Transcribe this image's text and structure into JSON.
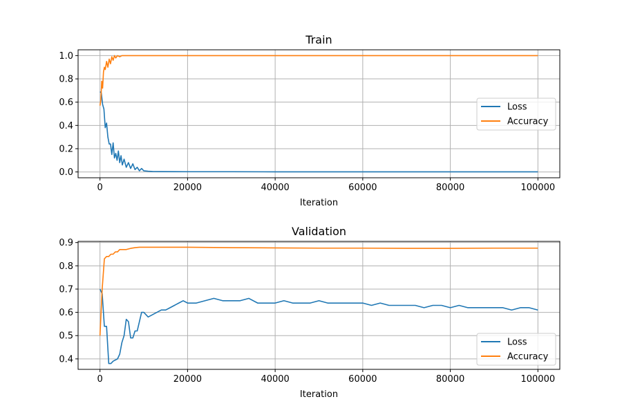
{
  "colors": {
    "loss": "#1f77b4",
    "accuracy": "#ff7f0e",
    "grid": "#b0b0b0",
    "axes": "#000000"
  },
  "chart_data": [
    {
      "type": "line",
      "title": "Train",
      "xlabel": "Iteration",
      "ylabel": "",
      "xlim": [
        -5000,
        105000
      ],
      "ylim": [
        -0.05,
        1.05
      ],
      "x_ticks": [
        0,
        20000,
        40000,
        60000,
        80000,
        100000
      ],
      "x_tick_labels": [
        "0",
        "20000",
        "40000",
        "60000",
        "80000",
        "100000"
      ],
      "y_ticks": [
        0.0,
        0.2,
        0.4,
        0.6,
        0.8,
        1.0
      ],
      "y_tick_labels": [
        "0.0",
        "0.2",
        "0.4",
        "0.6",
        "0.8",
        "1.0"
      ],
      "grid": true,
      "legend_position": "center-right",
      "series": [
        {
          "name": "Loss",
          "color": "#1f77b4",
          "x": [
            0,
            300,
            600,
            900,
            1200,
            1500,
            1800,
            2100,
            2400,
            2700,
            3000,
            3300,
            3600,
            3900,
            4200,
            4500,
            4800,
            5100,
            5500,
            6000,
            6500,
            7000,
            7500,
            8000,
            8500,
            9000,
            9500,
            10000,
            11000,
            12000,
            14000,
            20000,
            30000,
            40000,
            50000,
            60000,
            70000,
            80000,
            90000,
            100000
          ],
          "y": [
            0.69,
            0.68,
            0.58,
            0.54,
            0.38,
            0.42,
            0.3,
            0.24,
            0.24,
            0.15,
            0.25,
            0.12,
            0.16,
            0.1,
            0.18,
            0.08,
            0.14,
            0.06,
            0.11,
            0.04,
            0.08,
            0.03,
            0.07,
            0.02,
            0.04,
            0.01,
            0.03,
            0.01,
            0.006,
            0.004,
            0.003,
            0.002,
            0.002,
            0.001,
            0.001,
            0.001,
            0.001,
            0.001,
            0.001,
            0.001
          ]
        },
        {
          "name": "Accuracy",
          "color": "#ff7f0e",
          "x": [
            0,
            200,
            400,
            600,
            800,
            1000,
            1200,
            1500,
            1800,
            2100,
            2400,
            2700,
            3000,
            3300,
            3600,
            4000,
            4500,
            5000,
            6000,
            10000,
            20000,
            40000,
            60000,
            80000,
            100000
          ],
          "y": [
            0.57,
            0.62,
            0.78,
            0.72,
            0.86,
            0.9,
            0.88,
            0.95,
            0.9,
            0.97,
            0.93,
            0.99,
            0.96,
            1.0,
            0.98,
            1.0,
            0.99,
            1.0,
            1.0,
            1.0,
            1.0,
            1.0,
            1.0,
            1.0,
            1.0
          ]
        }
      ]
    },
    {
      "type": "line",
      "title": "Validation",
      "xlabel": "Iteration",
      "ylabel": "",
      "xlim": [
        -5000,
        105000
      ],
      "ylim": [
        0.355,
        0.905
      ],
      "x_ticks": [
        0,
        20000,
        40000,
        60000,
        80000,
        100000
      ],
      "x_tick_labels": [
        "0",
        "20000",
        "40000",
        "60000",
        "80000",
        "100000"
      ],
      "y_ticks": [
        0.4,
        0.5,
        0.6,
        0.7,
        0.8,
        0.9
      ],
      "y_tick_labels": [
        "0.4",
        "0.5",
        "0.6",
        "0.7",
        "0.8",
        "0.9"
      ],
      "grid": true,
      "legend_position": "lower-right",
      "series": [
        {
          "name": "Loss",
          "color": "#1f77b4",
          "x": [
            0,
            500,
            1000,
            1500,
            2000,
            2500,
            3000,
            4000,
            4500,
            5000,
            5500,
            6000,
            6500,
            7000,
            7500,
            8000,
            8500,
            9000,
            9500,
            10000,
            11000,
            12000,
            13000,
            14000,
            15000,
            16000,
            17000,
            18000,
            19000,
            20000,
            22000,
            24000,
            26000,
            28000,
            30000,
            32000,
            34000,
            36000,
            38000,
            40000,
            42000,
            44000,
            46000,
            48000,
            50000,
            52000,
            54000,
            56000,
            58000,
            60000,
            62000,
            64000,
            66000,
            68000,
            70000,
            72000,
            74000,
            76000,
            78000,
            80000,
            82000,
            84000,
            86000,
            88000,
            90000,
            92000,
            94000,
            96000,
            98000,
            100000
          ],
          "y": [
            0.7,
            0.68,
            0.54,
            0.54,
            0.38,
            0.38,
            0.39,
            0.4,
            0.42,
            0.47,
            0.5,
            0.57,
            0.56,
            0.49,
            0.49,
            0.52,
            0.52,
            0.56,
            0.6,
            0.6,
            0.58,
            0.59,
            0.6,
            0.61,
            0.61,
            0.62,
            0.63,
            0.64,
            0.65,
            0.64,
            0.64,
            0.65,
            0.66,
            0.65,
            0.65,
            0.65,
            0.66,
            0.64,
            0.64,
            0.64,
            0.65,
            0.64,
            0.64,
            0.64,
            0.65,
            0.64,
            0.64,
            0.64,
            0.64,
            0.64,
            0.63,
            0.64,
            0.63,
            0.63,
            0.63,
            0.63,
            0.62,
            0.63,
            0.63,
            0.62,
            0.63,
            0.62,
            0.62,
            0.62,
            0.62,
            0.62,
            0.61,
            0.62,
            0.62,
            0.61
          ]
        },
        {
          "name": "Accuracy",
          "color": "#ff7f0e",
          "x": [
            0,
            500,
            1000,
            1500,
            2000,
            2500,
            3000,
            3500,
            4000,
            4500,
            5000,
            6000,
            7000,
            8000,
            9000,
            10000,
            12000,
            15000,
            20000,
            30000,
            40000,
            50000,
            60000,
            70000,
            80000,
            90000,
            100000
          ],
          "y": [
            0.5,
            0.7,
            0.83,
            0.84,
            0.84,
            0.85,
            0.85,
            0.86,
            0.86,
            0.87,
            0.87,
            0.87,
            0.875,
            0.878,
            0.88,
            0.88,
            0.88,
            0.88,
            0.88,
            0.878,
            0.877,
            0.876,
            0.876,
            0.875,
            0.875,
            0.876,
            0.876
          ]
        }
      ]
    }
  ]
}
